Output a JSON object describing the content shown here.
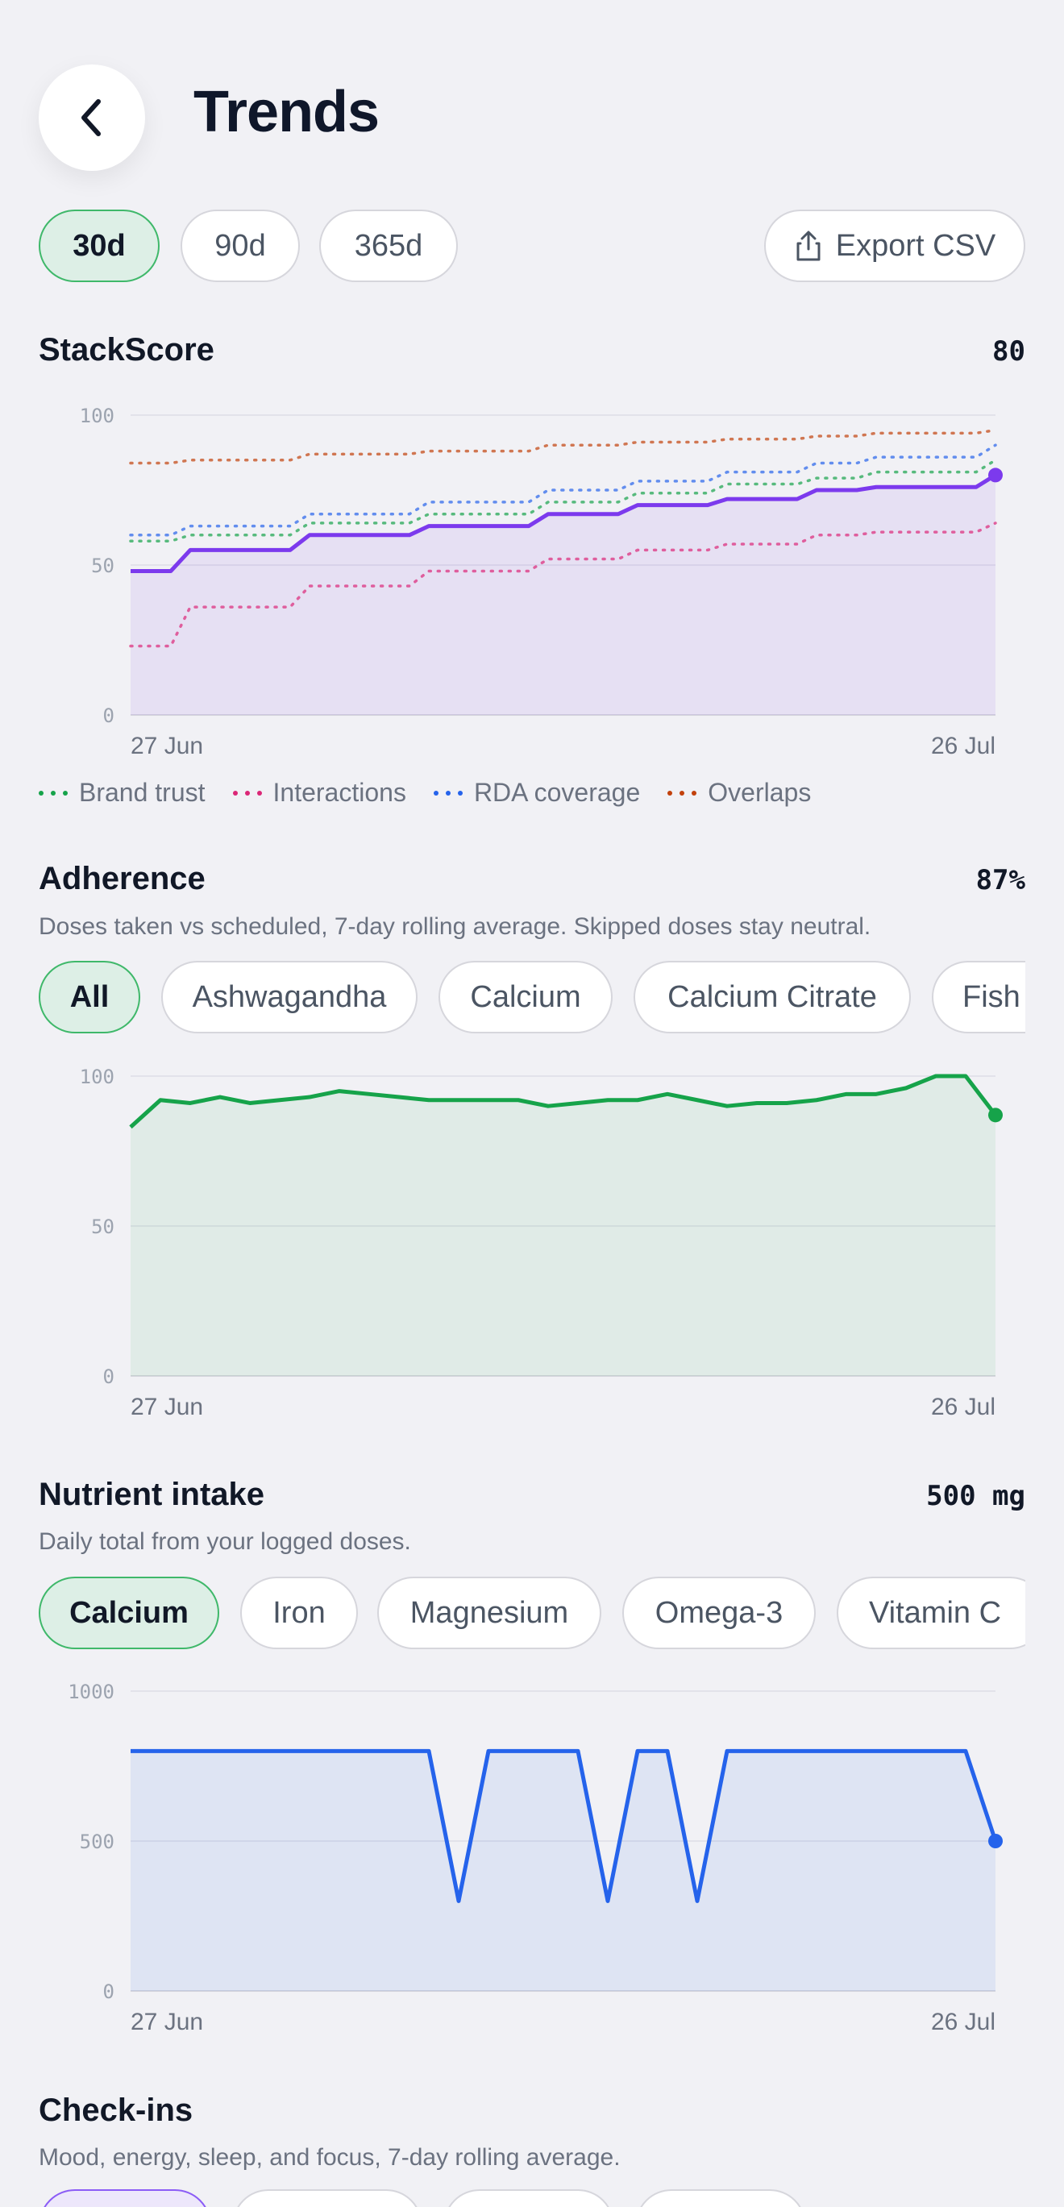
{
  "header": {
    "title": "Trends",
    "back_icon": "chevron-left-icon"
  },
  "range_tabs": [
    {
      "label": "30d",
      "active": true
    },
    {
      "label": "90d",
      "active": false
    },
    {
      "label": "365d",
      "active": false
    }
  ],
  "export": {
    "label": "Export CSV",
    "icon": "share-upload-icon"
  },
  "colors": {
    "accent_green": "#16a34a",
    "purple": "#7c3aed",
    "blue": "#2563eb",
    "pink": "#db2777",
    "orange": "#c2410c"
  },
  "stackscore": {
    "title": "StackScore",
    "value": "80",
    "legend": [
      "Brand trust",
      "Interactions",
      "RDA coverage",
      "Overlaps"
    ],
    "chart_data": {
      "type": "line",
      "x_start_label": "27 Jun",
      "x_end_label": "26 Jul",
      "ylim": [
        0,
        100
      ],
      "yticks": [
        "0",
        "50",
        "100"
      ],
      "series": [
        {
          "name": "",
          "style": "solid",
          "values": [
            48,
            48,
            55,
            55,
            55,
            55,
            60,
            60,
            60,
            60,
            63,
            63,
            63,
            63,
            67,
            67,
            67,
            70,
            70,
            70,
            72,
            72,
            72,
            75,
            75,
            76,
            76,
            76,
            76,
            80
          ]
        },
        {
          "name": "Brand trust",
          "style": "dotted",
          "values": [
            58,
            58,
            60,
            60,
            60,
            60,
            64,
            64,
            64,
            64,
            67,
            67,
            67,
            67,
            71,
            71,
            71,
            74,
            74,
            74,
            77,
            77,
            77,
            79,
            79,
            81,
            81,
            81,
            81,
            85
          ]
        },
        {
          "name": "Interactions",
          "style": "dotted",
          "values": [
            23,
            23,
            36,
            36,
            36,
            36,
            43,
            43,
            43,
            43,
            48,
            48,
            48,
            48,
            52,
            52,
            52,
            55,
            55,
            55,
            57,
            57,
            57,
            60,
            60,
            61,
            61,
            61,
            61,
            64
          ]
        },
        {
          "name": "RDA coverage",
          "style": "dotted",
          "values": [
            60,
            60,
            63,
            63,
            63,
            63,
            67,
            67,
            67,
            67,
            71,
            71,
            71,
            71,
            75,
            75,
            75,
            78,
            78,
            78,
            81,
            81,
            81,
            84,
            84,
            86,
            86,
            86,
            86,
            90
          ]
        },
        {
          "name": "Overlaps",
          "style": "dotted",
          "values": [
            84,
            84,
            85,
            85,
            85,
            85,
            87,
            87,
            87,
            87,
            88,
            88,
            88,
            88,
            90,
            90,
            90,
            91,
            91,
            91,
            92,
            92,
            92,
            93,
            93,
            94,
            94,
            94,
            94,
            95
          ]
        }
      ]
    }
  },
  "adherence": {
    "title": "Adherence",
    "value": "87%",
    "subtitle": "Doses taken vs scheduled, 7-day rolling average. Skipped doses stay neutral.",
    "filters": [
      {
        "label": "All",
        "active": true
      },
      {
        "label": "Ashwagandha",
        "active": false
      },
      {
        "label": "Calcium",
        "active": false
      },
      {
        "label": "Calcium Citrate",
        "active": false
      },
      {
        "label": "Fish Oil",
        "active": false
      }
    ],
    "chart_data": {
      "type": "area",
      "x_start_label": "27 Jun",
      "x_end_label": "26 Jul",
      "ylim": [
        0,
        100
      ],
      "yticks": [
        "0",
        "50",
        "100"
      ],
      "values": [
        83,
        92,
        91,
        93,
        91,
        92,
        93,
        95,
        94,
        93,
        92,
        92,
        92,
        92,
        90,
        91,
        92,
        92,
        94,
        92,
        90,
        91,
        91,
        92,
        94,
        94,
        96,
        100,
        100,
        87
      ]
    }
  },
  "nutrient": {
    "title": "Nutrient intake",
    "value": "500 mg",
    "subtitle": "Daily total from your logged doses.",
    "filters": [
      {
        "label": "Calcium",
        "active": true
      },
      {
        "label": "Iron",
        "active": false
      },
      {
        "label": "Magnesium",
        "active": false
      },
      {
        "label": "Omega-3",
        "active": false
      },
      {
        "label": "Vitamin C",
        "active": false
      }
    ],
    "chart_data": {
      "type": "area",
      "x_start_label": "27 Jun",
      "x_end_label": "26 Jul",
      "ylim": [
        0,
        1000
      ],
      "yticks": [
        "0",
        "500",
        "1000"
      ],
      "values": [
        800,
        800,
        800,
        800,
        800,
        800,
        800,
        800,
        800,
        800,
        800,
        300,
        800,
        800,
        800,
        800,
        300,
        800,
        800,
        300,
        800,
        800,
        800,
        800,
        800,
        800,
        800,
        800,
        800,
        500
      ]
    }
  },
  "checkins": {
    "title": "Check-ins",
    "subtitle": "Mood, energy, sleep, and focus, 7-day rolling average."
  }
}
